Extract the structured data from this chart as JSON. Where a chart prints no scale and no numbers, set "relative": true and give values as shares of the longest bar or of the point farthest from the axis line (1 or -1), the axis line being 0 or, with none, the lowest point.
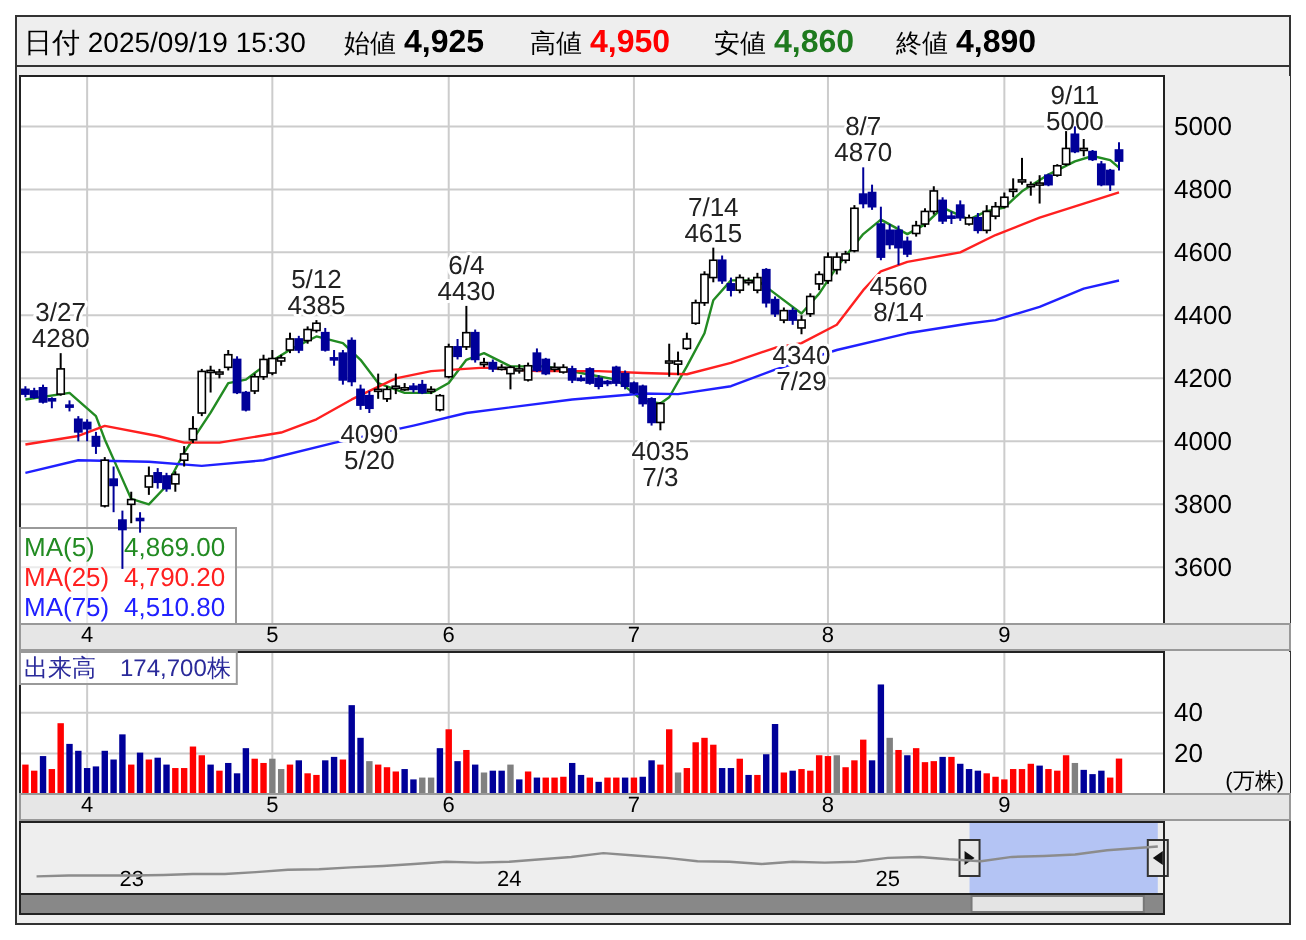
{
  "chart_data": [
    {
      "type": "candlestick",
      "title": "日付 2025/09/19 15:30",
      "annotations": [
        "始値 4,925",
        "高値 4,950",
        "安値 4,860",
        "終値 4,890",
        {
          "text": "3/27 4280",
          "y": 4280
        },
        {
          "text": "5/12 4385",
          "y": 4385
        },
        {
          "text": "4090 5/20",
          "y": 4090
        },
        {
          "text": "6/4 4430",
          "y": 4430
        },
        {
          "text": "4035 7/3",
          "y": 4035
        },
        {
          "text": "7/14 4615",
          "y": 4615
        },
        {
          "text": "4340 7/29",
          "y": 4340
        },
        {
          "text": "8/7 4870",
          "y": 4870
        },
        {
          "text": "4560 8/14",
          "y": 4560
        },
        {
          "text": "9/11 5000",
          "y": 5000
        }
      ],
      "categories": [
        null,
        null,
        null,
        null,
        null,
        null,
        null,
        "4",
        null,
        null,
        null,
        null,
        null,
        null,
        null,
        null,
        null,
        null,
        null,
        null,
        null,
        null,
        null,
        null,
        null,
        null,
        null,
        null,
        "5",
        null,
        null,
        null,
        null,
        null,
        null,
        null,
        null,
        null,
        null,
        null,
        null,
        null,
        null,
        null,
        null,
        null,
        null,
        null,
        "6",
        null,
        null,
        null,
        null,
        null,
        null,
        null,
        null,
        null,
        null,
        null,
        null,
        null,
        null,
        null,
        null,
        null,
        null,
        null,
        null,
        "7",
        null,
        null,
        null,
        null,
        null,
        null,
        null,
        null,
        null,
        null,
        null,
        null,
        null,
        null,
        null,
        null,
        null,
        null,
        null,
        null,
        null,
        "8",
        null,
        null,
        null,
        null,
        null,
        null,
        null,
        null,
        null,
        null,
        null,
        null,
        null,
        null,
        null,
        null,
        null,
        null,
        null,
        "9",
        null,
        null,
        null,
        null,
        null,
        null,
        null,
        null,
        null,
        null,
        null,
        null,
        null
      ],
      "ohlc": [
        [
          4165,
          4175,
          4140,
          4150
        ],
        [
          4160,
          4170,
          4135,
          4140
        ],
        [
          4170,
          4180,
          4120,
          4125
        ],
        [
          4135,
          4140,
          4105,
          4130
        ],
        [
          4150,
          4280,
          4145,
          4230
        ],
        [
          4115,
          4130,
          4095,
          4110
        ],
        [
          4070,
          4080,
          4000,
          4030
        ],
        [
          4060,
          4070,
          4000,
          4040
        ],
        [
          4015,
          4030,
          3960,
          3985
        ],
        [
          3795,
          3950,
          3790,
          3940
        ],
        [
          3880,
          3920,
          3775,
          3860
        ],
        [
          3750,
          3780,
          3595,
          3720
        ],
        [
          3800,
          3840,
          3740,
          3815
        ],
        [
          3755,
          3775,
          3710,
          3750
        ],
        [
          3855,
          3920,
          3830,
          3890
        ],
        [
          3900,
          3915,
          3850,
          3870
        ],
        [
          3890,
          3900,
          3840,
          3850
        ],
        [
          3865,
          3905,
          3840,
          3895
        ],
        [
          3940,
          3985,
          3920,
          3960
        ],
        [
          4005,
          4080,
          3995,
          4040
        ],
        [
          4090,
          4230,
          4080,
          4222
        ],
        [
          4220,
          4240,
          4155,
          4225
        ],
        [
          4215,
          4230,
          4200,
          4220
        ],
        [
          4235,
          4290,
          4225,
          4275
        ],
        [
          4260,
          4270,
          4150,
          4155
        ],
        [
          4155,
          4160,
          4095,
          4100
        ],
        [
          4160,
          4215,
          4150,
          4205
        ],
        [
          4205,
          4275,
          4195,
          4260
        ],
        [
          4217,
          4290,
          4210,
          4263
        ],
        [
          4255,
          4275,
          4240,
          4265
        ],
        [
          4290,
          4345,
          4280,
          4325
        ],
        [
          4325,
          4335,
          4280,
          4290
        ],
        [
          4320,
          4365,
          4310,
          4355
        ],
        [
          4352,
          4385,
          4345,
          4375
        ],
        [
          4345,
          4360,
          4285,
          4290
        ],
        [
          4265,
          4290,
          4240,
          4260
        ],
        [
          4280,
          4290,
          4180,
          4195
        ],
        [
          4320,
          4330,
          4175,
          4190
        ],
        [
          4165,
          4180,
          4100,
          4115
        ],
        [
          4145,
          4160,
          4090,
          4105
        ],
        [
          4165,
          4215,
          4135,
          4165
        ],
        [
          4135,
          4175,
          4125,
          4165
        ],
        [
          4175,
          4215,
          4150,
          4175
        ],
        [
          4170,
          4185,
          4160,
          4170
        ],
        [
          4175,
          4185,
          4155,
          4165
        ],
        [
          4180,
          4195,
          4150,
          4155
        ],
        [
          4165,
          4175,
          4150,
          4165
        ],
        [
          4100,
          4150,
          4095,
          4145
        ],
        [
          4205,
          4310,
          4200,
          4300
        ],
        [
          4300,
          4325,
          4260,
          4270
        ],
        [
          4300,
          4430,
          4290,
          4345
        ],
        [
          4345,
          4355,
          4250,
          4260
        ],
        [
          4250,
          4265,
          4235,
          4250
        ],
        [
          4250,
          4260,
          4220,
          4230
        ],
        [
          4235,
          4245,
          4225,
          4235
        ],
        [
          4215,
          4240,
          4165,
          4235
        ],
        [
          4230,
          4245,
          4215,
          4230
        ],
        [
          4195,
          4250,
          4190,
          4240
        ],
        [
          4280,
          4295,
          4220,
          4225
        ],
        [
          4260,
          4265,
          4210,
          4215
        ],
        [
          4235,
          4250,
          4220,
          4235
        ],
        [
          4220,
          4245,
          4215,
          4235
        ],
        [
          4230,
          4240,
          4185,
          4195
        ],
        [
          4200,
          4210,
          4190,
          4195
        ],
        [
          4230,
          4235,
          4180,
          4185
        ],
        [
          4200,
          4210,
          4165,
          4175
        ],
        [
          4190,
          4195,
          4175,
          4185
        ],
        [
          4235,
          4240,
          4175,
          4185
        ],
        [
          4215,
          4225,
          4165,
          4175
        ],
        [
          4185,
          4190,
          4150,
          4155
        ],
        [
          4175,
          4180,
          4110,
          4120
        ],
        [
          4135,
          4140,
          4050,
          4060
        ],
        [
          4060,
          4125,
          4035,
          4120
        ],
        [
          4250,
          4310,
          4205,
          4255
        ],
        [
          4245,
          4285,
          4210,
          4255
        ],
        [
          4295,
          4345,
          4290,
          4325
        ],
        [
          4375,
          4450,
          4370,
          4440
        ],
        [
          4440,
          4540,
          4430,
          4530
        ],
        [
          4520,
          4615,
          4505,
          4575
        ],
        [
          4575,
          4590,
          4500,
          4510
        ],
        [
          4500,
          4520,
          4460,
          4480
        ],
        [
          4480,
          4530,
          4470,
          4520
        ],
        [
          4510,
          4520,
          4495,
          4510
        ],
        [
          4480,
          4535,
          4470,
          4520
        ],
        [
          4545,
          4550,
          4425,
          4440
        ],
        [
          4450,
          4460,
          4395,
          4405
        ],
        [
          4385,
          4425,
          4375,
          4415
        ],
        [
          4415,
          4425,
          4370,
          4385
        ],
        [
          4360,
          4400,
          4340,
          4385
        ],
        [
          4405,
          4470,
          4395,
          4460
        ],
        [
          4500,
          4540,
          4480,
          4530
        ],
        [
          4510,
          4600,
          4500,
          4585
        ],
        [
          4545,
          4600,
          4530,
          4585
        ],
        [
          4575,
          4605,
          4565,
          4595
        ],
        [
          4605,
          4750,
          4600,
          4740
        ],
        [
          4785,
          4870,
          4740,
          4755
        ],
        [
          4790,
          4815,
          4735,
          4745
        ],
        [
          4690,
          4745,
          4575,
          4585
        ],
        [
          4670,
          4690,
          4610,
          4625
        ],
        [
          4670,
          4685,
          4560,
          4615
        ],
        [
          4635,
          4650,
          4585,
          4595
        ],
        [
          4660,
          4700,
          4650,
          4685
        ],
        [
          4690,
          4740,
          4680,
          4730
        ],
        [
          4730,
          4810,
          4720,
          4795
        ],
        [
          4765,
          4775,
          4690,
          4700
        ],
        [
          4715,
          4730,
          4690,
          4710
        ],
        [
          4750,
          4765,
          4700,
          4710
        ],
        [
          4690,
          4720,
          4685,
          4710
        ],
        [
          4710,
          4725,
          4660,
          4670
        ],
        [
          4670,
          4750,
          4660,
          4730
        ],
        [
          4715,
          4760,
          4705,
          4745
        ],
        [
          4745,
          4790,
          4740,
          4775
        ],
        [
          4800,
          4835,
          4775,
          4800
        ],
        [
          4830,
          4900,
          4815,
          4830
        ],
        [
          4815,
          4825,
          4780,
          4815
        ],
        [
          4815,
          4845,
          4755,
          4820
        ],
        [
          4845,
          4850,
          4810,
          4815
        ],
        [
          4845,
          4880,
          4840,
          4875
        ],
        [
          4880,
          4985,
          4875,
          4930
        ],
        [
          4975,
          5000,
          4915,
          4920
        ],
        [
          4930,
          4960,
          4905,
          4930
        ],
        [
          4920,
          4925,
          4890,
          4895
        ],
        [
          4880,
          4890,
          4810,
          4815
        ],
        [
          4860,
          4865,
          4795,
          4815
        ],
        [
          4925,
          4950,
          4860,
          4890
        ]
      ],
      "series": [
        {
          "name": "MA(5) 4,869.00",
          "type": "line",
          "color": "#228b22",
          "values": [
            4133,
            null,
            null,
            null,
            null,
            4154,
            null,
            null,
            4080,
            4006,
            null,
            3880,
            3817,
            null,
            3800,
            null,
            3859,
            null,
            3964,
            null,
            null,
            4091,
            null,
            4185,
            null,
            4196,
            null,
            4238,
            null,
            null,
            4291,
            null,
            null,
            4333,
            null,
            null,
            4312,
            null,
            4259,
            null,
            4185,
            null,
            null,
            4154,
            null,
            null,
            4154,
            null,
            4185,
            null,
            4259,
            null,
            4280,
            null,
            null,
            4238,
            null,
            null,
            null,
            4238,
            null,
            null,
            null,
            4217,
            null,
            null,
            null,
            4196,
            null,
            null,
            4130,
            null,
            4120,
            4140,
            null,
            4238,
            null,
            4343,
            4448,
            null,
            4511,
            null,
            null,
            4511,
            null,
            4469,
            null,
            null,
            4406,
            null,
            4469,
            null,
            4553,
            null,
            null,
            4658,
            null,
            4704,
            null,
            null,
            4658,
            null,
            4689,
            null,
            4742,
            null,
            null,
            4704,
            null,
            4731,
            null,
            4742,
            null,
            4794,
            null,
            null,
            4847,
            null,
            null,
            4889,
            null,
            4906,
            null,
            4893,
            4869
          ]
        },
        {
          "name": "MA(25) 4,790.20",
          "type": "line",
          "color": "#ff2020",
          "values": [
            3990,
            null,
            null,
            null,
            null,
            null,
            4017,
            null,
            null,
            4049,
            null,
            null,
            null,
            null,
            null,
            4017,
            null,
            null,
            3996,
            null,
            null,
            null,
            3996,
            null,
            null,
            null,
            null,
            null,
            null,
            4028,
            null,
            null,
            null,
            4070,
            null,
            null,
            null,
            4133,
            null,
            null,
            null,
            null,
            4200,
            null,
            null,
            null,
            4223,
            null,
            null,
            null,
            null,
            null,
            4234,
            null,
            null,
            null,
            null,
            null,
            4223,
            null,
            null,
            null,
            null,
            null,
            null,
            4223,
            null,
            null,
            null,
            null,
            4217,
            null,
            null,
            null,
            null,
            4213,
            null,
            null,
            null,
            null,
            4249,
            null,
            null,
            null,
            null,
            4297,
            null,
            null,
            4312,
            null,
            null,
            null,
            4370,
            null,
            null,
            4480,
            null,
            4540,
            null,
            null,
            4570,
            null,
            null,
            null,
            null,
            null,
            4600,
            null,
            null,
            null,
            4655,
            null,
            null,
            null,
            null,
            4710,
            null,
            null,
            null,
            null,
            4755,
            null,
            null,
            null,
            4790.2
          ]
        },
        {
          "name": "MA(75) 4,510.80",
          "type": "line",
          "color": "#2020ff",
          "values": [
            3900,
            null,
            null,
            null,
            null,
            null,
            3940,
            null,
            null,
            null,
            null,
            null,
            null,
            null,
            3935,
            null,
            null,
            null,
            null,
            null,
            3922,
            null,
            null,
            null,
            null,
            null,
            null,
            3940,
            null,
            null,
            null,
            null,
            null,
            null,
            null,
            3995,
            null,
            null,
            null,
            null,
            null,
            null,
            null,
            null,
            4050,
            null,
            null,
            null,
            null,
            null,
            4090,
            null,
            null,
            null,
            null,
            null,
            null,
            null,
            null,
            null,
            null,
            null,
            4133,
            null,
            null,
            null,
            null,
            null,
            null,
            null,
            4152,
            null,
            null,
            null,
            4150,
            null,
            null,
            null,
            null,
            null,
            4175,
            null,
            null,
            null,
            null,
            4228,
            null,
            null,
            null,
            null,
            null,
            null,
            4290,
            null,
            null,
            null,
            null,
            null,
            null,
            null,
            4343,
            null,
            null,
            null,
            null,
            null,
            null,
            4374,
            null,
            null,
            4385,
            null,
            null,
            null,
            null,
            4427,
            null,
            null,
            null,
            null,
            4485,
            null,
            null,
            null,
            4510.8
          ]
        }
      ],
      "ylim": [
        3420,
        5160
      ],
      "yticks": [
        3600,
        3800,
        4000,
        4200,
        4400,
        4600,
        4800,
        5000
      ],
      "grid": true,
      "legend": "bottom left"
    },
    {
      "type": "bar",
      "title": "出来高　174,700株",
      "annotations": [
        "(万株)"
      ],
      "categories": [
        null,
        null,
        null,
        null,
        null,
        null,
        null,
        "4",
        null,
        null,
        null,
        null,
        null,
        null,
        null,
        null,
        null,
        null,
        null,
        null,
        null,
        null,
        null,
        null,
        null,
        null,
        null,
        null,
        "5",
        null,
        null,
        null,
        null,
        null,
        null,
        null,
        null,
        null,
        null,
        null,
        null,
        null,
        null,
        null,
        null,
        null,
        null,
        null,
        "6",
        null,
        null,
        null,
        null,
        null,
        null,
        null,
        null,
        null,
        null,
        null,
        null,
        null,
        null,
        null,
        null,
        null,
        null,
        null,
        null,
        "7",
        null,
        null,
        null,
        null,
        null,
        null,
        null,
        null,
        null,
        null,
        null,
        null,
        null,
        null,
        null,
        null,
        null,
        null,
        null,
        null,
        null,
        "8",
        null,
        null,
        null,
        null,
        null,
        null,
        null,
        null,
        null,
        null,
        null,
        null,
        null,
        null,
        null,
        null,
        null,
        null,
        null,
        "9",
        null,
        null,
        null,
        null,
        null,
        null,
        null,
        null,
        null,
        null,
        null,
        null,
        null
      ],
      "values": [
        14.5,
        11.5,
        18.7,
        12.3,
        34.9,
        24.7,
        21.3,
        12.8,
        13.6,
        21.3,
        17.0,
        29.4,
        14.5,
        20.4,
        17.0,
        17.9,
        14.5,
        12.8,
        12.8,
        23.4,
        19.1,
        14.5,
        11.5,
        15.3,
        10.2,
        22.6,
        17.4,
        15.3,
        17.4,
        12.3,
        14.5,
        16.6,
        10.2,
        9.4,
        16.6,
        18.3,
        17.0,
        43.8,
        27.7,
        16.2,
        14.5,
        13.2,
        11.1,
        12.3,
        7.2,
        8.1,
        8.1,
        22.6,
        31.9,
        16.2,
        21.7,
        14.5,
        10.6,
        11.5,
        11.5,
        14.5,
        7.2,
        11.1,
        8.1,
        8.1,
        8.1,
        8.5,
        15.3,
        9.4,
        8.1,
        6.0,
        8.1,
        8.1,
        8.1,
        8.1,
        8.5,
        16.6,
        14.5,
        31.9,
        10.6,
        12.8,
        25.5,
        27.7,
        24.3,
        12.8,
        12.8,
        17.4,
        9.4,
        9.4,
        19.6,
        34.5,
        10.6,
        11.5,
        12.3,
        11.5,
        19.1,
        18.7,
        19.1,
        13.2,
        16.6,
        26.8,
        16.6,
        54.0,
        27.7,
        21.7,
        19.1,
        22.6,
        15.7,
        16.2,
        18.3,
        18.3,
        14.9,
        12.3,
        11.5,
        10.2,
        8.5,
        7.2,
        12.3,
        12.3,
        14.9,
        14.0,
        12.3,
        11.5,
        19.1,
        15.3,
        11.9,
        9.8,
        11.5,
        8.1,
        17.47
      ],
      "colors": [
        "#ff0000",
        "#ff0000",
        "#000099",
        "#ff0000",
        "#ff0000",
        "#000099",
        "#000099",
        "#000099",
        "#000099",
        "#000099",
        "#000099",
        "#000099",
        "#ff0000",
        "#000099",
        "#ff0000",
        "#000099",
        "#000099",
        "#ff0000",
        "#ff0000",
        "#ff0000",
        "#ff0000",
        "#000099",
        "#ff0000",
        "#000099",
        "#000099",
        "#000099",
        "#ff0000",
        "#ff0000",
        "#808080",
        "#808080",
        "#ff0000",
        "#000099",
        "#ff0000",
        "#ff0000",
        "#000099",
        "#000099",
        "#ff0000",
        "#000099",
        "#000099",
        "#808080",
        "#ff0000",
        "#ff0000",
        "#ff0000",
        "#000099",
        "#000099",
        "#808080",
        "#808080",
        "#000099",
        "#ff0000",
        "#000099",
        "#ff0000",
        "#000099",
        "#808080",
        "#000099",
        "#000099",
        "#808080",
        "#000099",
        "#ff0000",
        "#000099",
        "#ff0000",
        "#ff0000",
        "#ff0000",
        "#000099",
        "#000099",
        "#ff0000",
        "#000099",
        "#ff0000",
        "#ff0000",
        "#000099",
        "#ff0000",
        "#000099",
        "#000099",
        "#ff0000",
        "#ff0000",
        "#808080",
        "#ff0000",
        "#ff0000",
        "#ff0000",
        "#ff0000",
        "#000099",
        "#000099",
        "#ff0000",
        "#000099",
        "#ff0000",
        "#000099",
        "#000099",
        "#ff0000",
        "#000099",
        "#ff0000",
        "#ff0000",
        "#ff0000",
        "#ff0000",
        "#808080",
        "#ff0000",
        "#ff0000",
        "#ff0000",
        "#000099",
        "#000099",
        "#808080",
        "#ff0000",
        "#000099",
        "#ff0000",
        "#ff0000",
        "#ff0000",
        "#000099",
        "#ff0000",
        "#000099",
        "#000099",
        "#000099",
        "#ff0000",
        "#ff0000",
        "#ff0000",
        "#ff0000",
        "#ff0000",
        "#ff0000",
        "#000099",
        "#ff0000",
        "#ff0000",
        "#ff0000",
        "#808080",
        "#000099",
        "#000099",
        "#000099",
        "#ff0000",
        "#ff0000"
      ],
      "ylim": [
        0,
        70
      ],
      "yticks": [
        20,
        40
      ],
      "grid": true
    },
    {
      "type": "line",
      "relative": true,
      "color": "#8c8c8c",
      "tick_labels": "x",
      "x": [
        "2022-10",
        "2022-11",
        "2022-12",
        "2023-01",
        "2023-02",
        "2023-03",
        "2023-04",
        "2023-05",
        "2023-06",
        "2023-07",
        "2023-08",
        "2023-09",
        "2023-10",
        "2023-11",
        "2023-12",
        "2024-01",
        "2024-02",
        "2024-03",
        "2024-04",
        "2024-05",
        "2024-06",
        "2024-07",
        "2024-08",
        "2024-09",
        "2024-10",
        "2024-11",
        "2024-12",
        "2025-01",
        "2025-02",
        "2025-03",
        "2025-04",
        "2025-05",
        "2025-06",
        "2025-07",
        "2025-08",
        "2025-09-19"
      ],
      "values": [
        0.37,
        0.39,
        0.39,
        0.39,
        0.4,
        0.42,
        0.42,
        0.46,
        0.51,
        0.52,
        0.56,
        0.59,
        0.63,
        0.68,
        0.66,
        0.68,
        0.73,
        0.78,
        0.86,
        0.81,
        0.76,
        0.69,
        0.68,
        0.63,
        0.68,
        0.66,
        0.68,
        0.76,
        0.78,
        0.73,
        0.69,
        0.78,
        0.8,
        0.83,
        0.92,
        1
      ],
      "xlim": [
        "2022-09-15",
        "2025-09-25"
      ],
      "xticks": [
        {
          "value": "2023-01",
          "label": "23"
        },
        {
          "value": "2024-01",
          "label": "24"
        },
        {
          "value": "2025-01",
          "label": "25"
        }
      ],
      "bands": [
        {
          "axis": "x",
          "from": "2025-03-21",
          "to": "2025-09-19",
          "color": "#b4c4f4"
        }
      ]
    }
  ]
}
